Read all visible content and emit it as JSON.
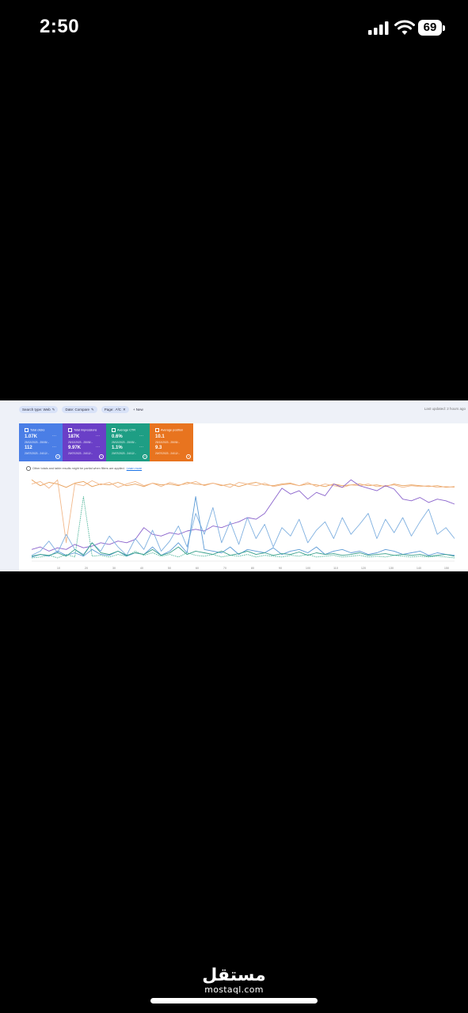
{
  "status_bar": {
    "time": "2:50",
    "battery": "69"
  },
  "toolbar": {
    "filters": [
      {
        "label": "Search type: Web",
        "icon": "pencil-icon"
      },
      {
        "label": "Date: Compare",
        "icon": "pencil-icon"
      },
      {
        "label": "Page: ↗/C",
        "icon": "close-icon"
      }
    ],
    "new_label": "New",
    "last_updated": "Last updated: 2 hours ago"
  },
  "metrics": [
    {
      "label": "Total clicks",
      "value1": "1.07K",
      "date1": "25/12/2023 - 25/05/...",
      "value2": "112",
      "date2": "20/07/2023 - 24/12/...",
      "color": "#4a7ee6"
    },
    {
      "label": "Total impressions",
      "value1": "187K",
      "date1": "25/12/2023 - 25/05/...",
      "value2": "9.97K",
      "date2": "20/07/2023 - 24/12/...",
      "color": "#6a3fc7"
    },
    {
      "label": "Average CTR",
      "value1": "0.6%",
      "date1": "25/12/2023 - 25/05/...",
      "value2": "1.1%",
      "date2": "20/07/2023 - 24/12/...",
      "color": "#1e9e84"
    },
    {
      "label": "Average position",
      "value1": "10.1",
      "date1": "25/12/2023 - 25/05/...",
      "value2": "9.3",
      "date2": "20/07/2023 - 24/12/...",
      "color": "#e8741f"
    }
  ],
  "notice": {
    "text": "Other totals and table results might be partial when filters are applied.",
    "link": "Learn more"
  },
  "watermark": {
    "arabic": "مستقل",
    "latin": "mostaql.com"
  },
  "chart_data": {
    "type": "line",
    "x_ticks": [
      "10",
      "20",
      "30",
      "40",
      "50",
      "60",
      "70",
      "80",
      "90",
      "100",
      "110",
      "120",
      "130",
      "140",
      "150"
    ],
    "series": [
      {
        "color": "#e8a05a",
        "values": [
          0.95,
          0.88,
          0.92,
          0.9,
          0.86,
          0.91,
          0.93,
          0.87,
          0.9,
          0.89,
          0.92,
          0.88,
          0.9,
          0.87,
          0.91,
          0.89,
          0.9,
          0.88,
          0.92,
          0.9,
          0.89,
          0.91,
          0.88,
          0.9,
          0.87,
          0.9,
          0.92,
          0.89,
          0.88,
          0.9,
          0.91,
          0.88,
          0.9,
          0.89,
          0.87,
          0.9,
          0.88,
          0.89,
          0.9,
          0.88,
          0.89,
          0.87,
          0.9,
          0.88,
          0.89,
          0.88,
          0.87,
          0.88,
          0.86,
          0.87
        ]
      },
      {
        "color": "#f2b88a",
        "values": [
          0.9,
          0.93,
          0.85,
          0.95,
          0.2,
          0.9,
          0.88,
          0.94,
          0.89,
          0.92,
          0.86,
          0.9,
          0.93,
          0.88,
          0.91,
          0.87,
          0.92,
          0.89,
          0.9,
          0.93,
          0.88,
          0.91,
          0.89,
          0.86,
          0.92,
          0.9,
          0.88,
          0.91,
          0.87,
          0.89,
          0.9,
          0.88,
          0.92,
          0.87,
          0.9,
          0.88,
          0.86,
          0.89,
          0.88,
          0.9,
          0.87,
          0.88,
          0.89,
          0.86,
          0.88,
          0.87,
          0.88,
          0.86,
          0.87,
          0.86
        ]
      },
      {
        "color": "#8a63cc",
        "values": [
          0.12,
          0.15,
          0.1,
          0.14,
          0.12,
          0.18,
          0.14,
          0.16,
          0.2,
          0.18,
          0.22,
          0.2,
          0.24,
          0.38,
          0.3,
          0.28,
          0.32,
          0.3,
          0.34,
          0.36,
          0.34,
          0.4,
          0.38,
          0.42,
          0.45,
          0.5,
          0.48,
          0.55,
          0.7,
          0.85,
          0.78,
          0.82,
          0.72,
          0.8,
          0.76,
          0.9,
          0.86,
          0.95,
          0.88,
          0.85,
          0.82,
          0.88,
          0.84,
          0.72,
          0.7,
          0.74,
          0.68,
          0.72,
          0.7,
          0.66
        ]
      },
      {
        "color": "#7fb0e0",
        "values": [
          0.05,
          0.1,
          0.22,
          0.08,
          0.3,
          0.12,
          0.06,
          0.2,
          0.1,
          0.28,
          0.15,
          0.05,
          0.25,
          0.12,
          0.35,
          0.1,
          0.22,
          0.4,
          0.15,
          0.55,
          0.3,
          0.62,
          0.2,
          0.45,
          0.18,
          0.5,
          0.25,
          0.42,
          0.15,
          0.38,
          0.28,
          0.48,
          0.2,
          0.35,
          0.45,
          0.25,
          0.5,
          0.3,
          0.42,
          0.55,
          0.25,
          0.48,
          0.32,
          0.5,
          0.28,
          0.45,
          0.6,
          0.3,
          0.38,
          0.25
        ]
      },
      {
        "color": "#5c9bd6",
        "values": [
          0.03,
          0.06,
          0.04,
          0.1,
          0.05,
          0.08,
          0.04,
          0.12,
          0.06,
          0.05,
          0.1,
          0.04,
          0.08,
          0.06,
          0.15,
          0.05,
          0.1,
          0.2,
          0.08,
          0.75,
          0.12,
          0.1,
          0.08,
          0.15,
          0.06,
          0.12,
          0.1,
          0.08,
          0.14,
          0.06,
          0.1,
          0.12,
          0.08,
          0.15,
          0.06,
          0.1,
          0.12,
          0.08,
          0.1,
          0.06,
          0.08,
          0.12,
          0.1,
          0.06,
          0.08,
          0.1,
          0.05,
          0.08,
          0.06,
          0.05
        ]
      },
      {
        "color": "#3aa08c",
        "values": [
          0.04,
          0.06,
          0.05,
          0.08,
          0.04,
          0.12,
          0.05,
          0.2,
          0.08,
          0.06,
          0.1,
          0.05,
          0.08,
          0.06,
          0.12,
          0.05,
          0.08,
          0.15,
          0.06,
          0.1,
          0.08,
          0.06,
          0.1,
          0.05,
          0.07,
          0.1,
          0.06,
          0.08,
          0.05,
          0.07,
          0.06,
          0.09,
          0.05,
          0.08,
          0.06,
          0.07,
          0.05,
          0.06,
          0.08,
          0.05,
          0.06,
          0.07,
          0.05,
          0.06,
          0.05,
          0.06,
          0.04,
          0.05,
          0.06,
          0.04
        ]
      },
      {
        "color": "#4fb59a",
        "dashed": true,
        "values": [
          0.02,
          0.03,
          0.05,
          0.02,
          0.06,
          0.03,
          0.75,
          0.04,
          0.05,
          0.03,
          0.06,
          0.04,
          0.1,
          0.05,
          0.08,
          0.04,
          0.06,
          0.03,
          0.08,
          0.05,
          0.04,
          0.06,
          0.03,
          0.05,
          0.04,
          0.06,
          0.03,
          0.05,
          0.04,
          0.03,
          0.05,
          0.04,
          0.06,
          0.03,
          0.04,
          0.05,
          0.03,
          0.04,
          0.05,
          0.03,
          0.04,
          0.03,
          0.05,
          0.04,
          0.03,
          0.04,
          0.03,
          0.04,
          0.03,
          0.02
        ]
      }
    ]
  }
}
